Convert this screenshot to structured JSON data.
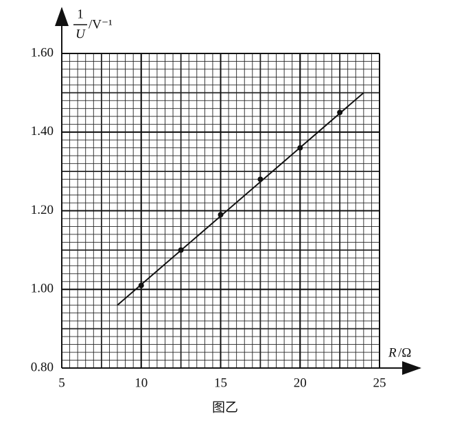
{
  "chart_data": {
    "type": "scatter",
    "y_label": {
      "numerator": "1",
      "denominator": "U",
      "unit": "/V⁻¹"
    },
    "x_label": {
      "variable": "R",
      "unit": "/Ω"
    },
    "caption": "图乙",
    "x": [
      10,
      12.5,
      15,
      17.5,
      20,
      22.5
    ],
    "y": [
      1.01,
      1.1,
      1.19,
      1.28,
      1.36,
      1.45
    ],
    "fit_line": {
      "x": [
        8.5,
        24
      ],
      "y": [
        0.96,
        1.5
      ]
    },
    "xlim": [
      5,
      25
    ],
    "xticks": [
      5,
      10,
      15,
      20,
      25
    ],
    "ylim": [
      0.8,
      1.6
    ],
    "yticks": [
      {
        "value": 0.8,
        "label": "0.80"
      },
      {
        "value": 1.0,
        "label": "1.00"
      },
      {
        "value": 1.2,
        "label": "1.20"
      },
      {
        "value": 1.4,
        "label": "1.40"
      },
      {
        "value": 1.6,
        "label": "1.60"
      }
    ],
    "grid": true,
    "color": "#111111"
  }
}
